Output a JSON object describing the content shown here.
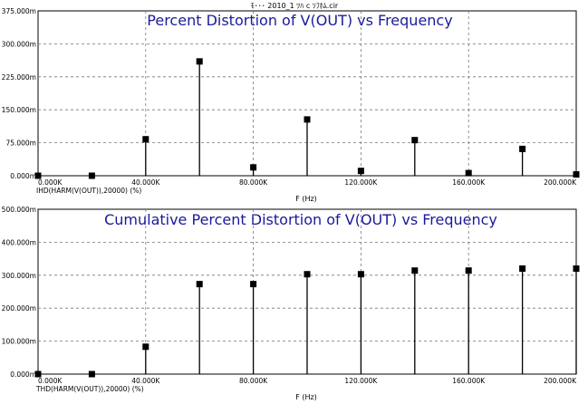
{
  "window": {
    "header_text": "ﾓ･･･ 2010_1 ﾂﾊ c ｿﾌﾎﾑ.cir"
  },
  "chart_data": [
    {
      "type": "scatter",
      "marker": "square-with-stem",
      "title": "Percent Distortion of V(OUT) vs Frequency",
      "title_color": "#1a1a9a",
      "trace_label": "IHD(HARM(V(OUT)),20000) (%)",
      "xlabel": "F (Hz)",
      "x_ticks": [
        "0.000K",
        "40.000K",
        "80.000K",
        "120.000K",
        "160.000K",
        "200.000K"
      ],
      "y_ticks": [
        "0.000m",
        "75.000m",
        "150.000m",
        "225.000m",
        "300.000m",
        "375.000m"
      ],
      "xlim": [
        0,
        200000
      ],
      "ylim": [
        0,
        375
      ],
      "y_unit": "m",
      "grid": true,
      "x": [
        0,
        20000,
        40000,
        60000,
        80000,
        100000,
        120000,
        140000,
        160000,
        180000,
        200000
      ],
      "y": [
        0,
        0,
        83,
        260,
        19,
        128,
        11,
        81,
        6,
        61,
        3
      ]
    },
    {
      "type": "scatter",
      "marker": "square-with-stem",
      "title": "Cumulative Percent Distortion of V(OUT) vs Frequency",
      "title_color": "#1a1a9a",
      "trace_label": "THD(HARM(V(OUT)),20000) (%)",
      "xlabel": "F (Hz)",
      "x_ticks": [
        "0.000K",
        "40.000K",
        "80.000K",
        "120.000K",
        "160.000K",
        "200.000K"
      ],
      "y_ticks": [
        "0.000m",
        "100.000m",
        "200.000m",
        "300.000m",
        "400.000m",
        "500.000m"
      ],
      "xlim": [
        0,
        200000
      ],
      "ylim": [
        0,
        500
      ],
      "y_unit": "m",
      "grid": true,
      "x": [
        0,
        20000,
        40000,
        60000,
        80000,
        100000,
        120000,
        140000,
        160000,
        180000,
        200000
      ],
      "y": [
        0,
        0,
        83,
        273,
        273,
        303,
        303,
        314,
        314,
        320,
        320
      ]
    }
  ]
}
